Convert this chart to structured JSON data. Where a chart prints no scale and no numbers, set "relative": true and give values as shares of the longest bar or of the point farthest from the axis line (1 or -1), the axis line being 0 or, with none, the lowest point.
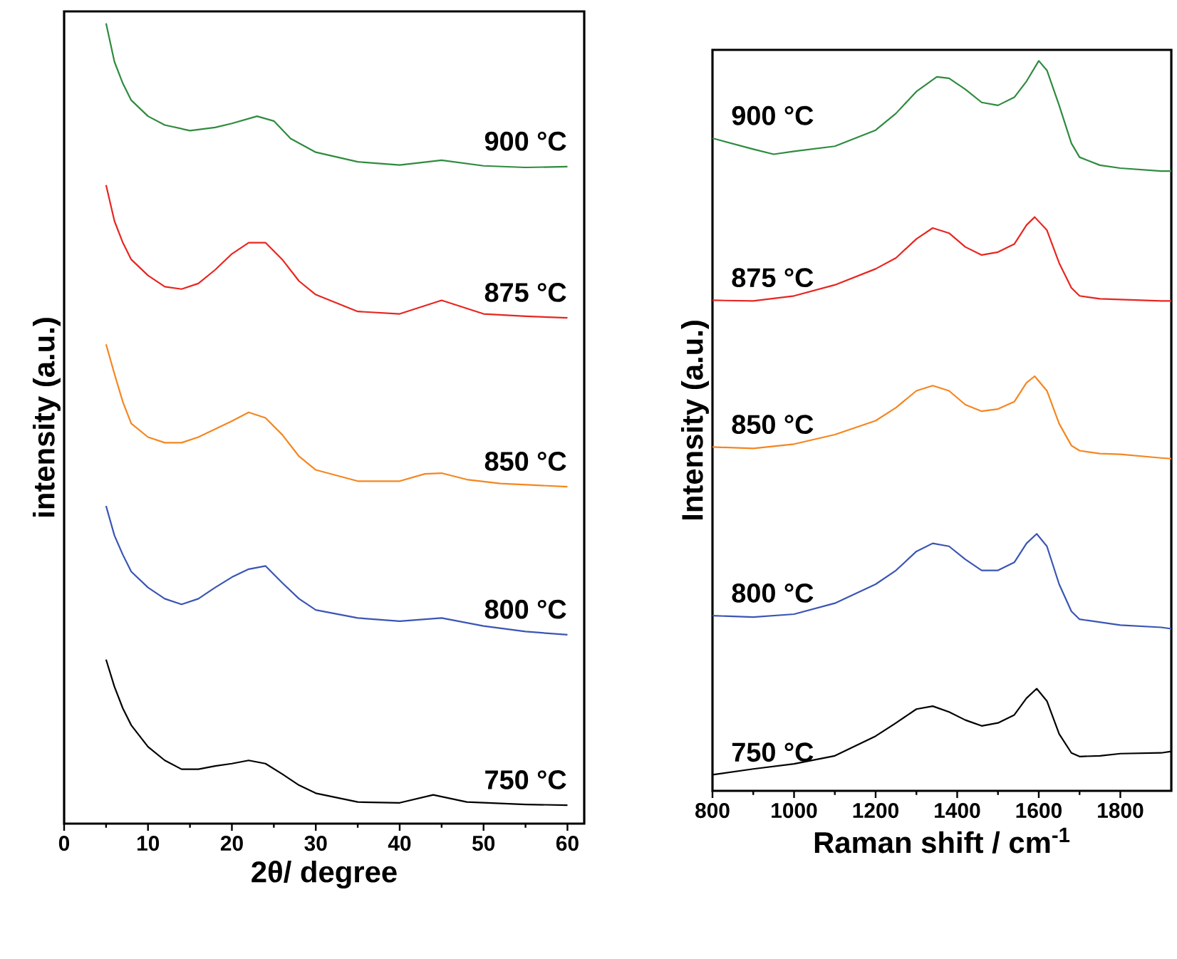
{
  "chart_data": [
    {
      "type": "line",
      "relative": true,
      "xlabel": "2θ/ degree",
      "ylabel": "intensity (a.u.)",
      "xlim": [
        0,
        62
      ],
      "xticks": [
        0,
        10,
        20,
        30,
        40,
        50,
        60
      ],
      "marker": "none",
      "line_style": "solid",
      "legend": false,
      "series": [
        {
          "name": "900 °C",
          "color": "#2e8b3e",
          "x": [
            5,
            6,
            7,
            8,
            10,
            12,
            15,
            18,
            20,
            23,
            25,
            27,
            30,
            35,
            40,
            45,
            50,
            55,
            60
          ],
          "values": [
            1.0,
            0.952,
            0.925,
            0.904,
            0.884,
            0.873,
            0.866,
            0.87,
            0.875,
            0.884,
            0.878,
            0.856,
            0.839,
            0.827,
            0.823,
            0.829,
            0.822,
            0.82,
            0.821
          ]
        },
        {
          "name": "875 °C",
          "color": "#e8251f",
          "x": [
            5,
            6,
            7,
            8,
            10,
            12,
            14,
            16,
            18,
            20,
            22,
            24,
            26,
            28,
            30,
            35,
            40,
            45,
            50,
            55,
            60
          ],
          "values": [
            0.798,
            0.753,
            0.726,
            0.705,
            0.685,
            0.671,
            0.668,
            0.675,
            0.692,
            0.712,
            0.726,
            0.726,
            0.705,
            0.678,
            0.661,
            0.64,
            0.637,
            0.654,
            0.637,
            0.634,
            0.632
          ]
        },
        {
          "name": "850 °C",
          "color": "#f5861f",
          "x": [
            5,
            6,
            7,
            8,
            10,
            12,
            14,
            16,
            18,
            20,
            22,
            24,
            26,
            28,
            30,
            35,
            40,
            43,
            45,
            48,
            52,
            56,
            60
          ],
          "values": [
            0.599,
            0.562,
            0.527,
            0.5,
            0.483,
            0.476,
            0.476,
            0.483,
            0.493,
            0.503,
            0.514,
            0.507,
            0.486,
            0.459,
            0.442,
            0.428,
            0.428,
            0.437,
            0.438,
            0.43,
            0.425,
            0.423,
            0.421
          ]
        },
        {
          "name": "800 °C",
          "color": "#3a55b4",
          "x": [
            5,
            6,
            7,
            8,
            10,
            12,
            14,
            16,
            18,
            20,
            22,
            24,
            26,
            28,
            30,
            35,
            40,
            45,
            50,
            55,
            60
          ],
          "values": [
            0.397,
            0.36,
            0.336,
            0.315,
            0.295,
            0.281,
            0.274,
            0.281,
            0.295,
            0.308,
            0.318,
            0.322,
            0.301,
            0.281,
            0.267,
            0.257,
            0.253,
            0.257,
            0.247,
            0.24,
            0.236
          ]
        },
        {
          "name": "750 °C",
          "color": "#000000",
          "x": [
            5,
            6,
            7,
            8,
            10,
            12,
            14,
            16,
            18,
            20,
            22,
            24,
            26,
            28,
            30,
            35,
            40,
            44,
            48,
            55,
            60
          ],
          "values": [
            0.205,
            0.171,
            0.144,
            0.123,
            0.096,
            0.079,
            0.068,
            0.068,
            0.072,
            0.075,
            0.079,
            0.075,
            0.062,
            0.048,
            0.038,
            0.027,
            0.026,
            0.036,
            0.027,
            0.024,
            0.023
          ]
        }
      ]
    },
    {
      "type": "line",
      "relative": true,
      "xlabel": "Raman shift / cm$^{-1}$",
      "ylabel": "Intensity (a.u.)",
      "xlim": [
        800,
        1925
      ],
      "xticks": [
        800,
        1000,
        1200,
        1400,
        1600,
        1800
      ],
      "marker": "none",
      "line_style": "solid",
      "legend": false,
      "series": [
        {
          "name": "900 °C",
          "color": "#2e8b3e",
          "x": [
            800,
            900,
            950,
            1000,
            1100,
            1200,
            1250,
            1300,
            1350,
            1380,
            1420,
            1460,
            1500,
            1540,
            1570,
            1600,
            1620,
            1650,
            1680,
            1700,
            1750,
            1800,
            1900,
            1925
          ],
          "values": [
            0.894,
            0.879,
            0.872,
            0.876,
            0.883,
            0.905,
            0.928,
            0.958,
            0.978,
            0.976,
            0.961,
            0.943,
            0.939,
            0.95,
            0.972,
            1.0,
            0.987,
            0.939,
            0.887,
            0.868,
            0.857,
            0.853,
            0.849,
            0.849
          ]
        },
        {
          "name": "875 °C",
          "color": "#e8251f",
          "x": [
            800,
            900,
            1000,
            1100,
            1200,
            1250,
            1300,
            1340,
            1380,
            1420,
            1460,
            1500,
            1540,
            1570,
            1590,
            1620,
            1650,
            1680,
            1700,
            1750,
            1800,
            1900,
            1925
          ],
          "values": [
            0.672,
            0.671,
            0.678,
            0.693,
            0.715,
            0.73,
            0.756,
            0.771,
            0.764,
            0.745,
            0.734,
            0.738,
            0.749,
            0.775,
            0.786,
            0.768,
            0.723,
            0.689,
            0.678,
            0.674,
            0.673,
            0.671,
            0.671
          ]
        },
        {
          "name": "850 °C",
          "color": "#f5861f",
          "x": [
            800,
            900,
            1000,
            1100,
            1200,
            1250,
            1300,
            1340,
            1380,
            1420,
            1460,
            1500,
            1540,
            1570,
            1590,
            1620,
            1650,
            1680,
            1700,
            1750,
            1800,
            1900,
            1925
          ],
          "values": [
            0.471,
            0.469,
            0.475,
            0.488,
            0.507,
            0.525,
            0.548,
            0.555,
            0.548,
            0.529,
            0.52,
            0.523,
            0.533,
            0.559,
            0.568,
            0.548,
            0.503,
            0.473,
            0.466,
            0.462,
            0.461,
            0.456,
            0.455
          ]
        },
        {
          "name": "800 °C",
          "color": "#3a55b4",
          "x": [
            800,
            900,
            1000,
            1100,
            1200,
            1250,
            1300,
            1340,
            1380,
            1420,
            1460,
            1500,
            1540,
            1570,
            1595,
            1620,
            1650,
            1680,
            1700,
            1750,
            1800,
            1900,
            1925
          ],
          "values": [
            0.24,
            0.238,
            0.242,
            0.257,
            0.283,
            0.302,
            0.328,
            0.339,
            0.335,
            0.317,
            0.302,
            0.302,
            0.313,
            0.339,
            0.352,
            0.335,
            0.283,
            0.246,
            0.235,
            0.231,
            0.227,
            0.224,
            0.222
          ]
        },
        {
          "name": "750 °C",
          "color": "#000000",
          "x": [
            800,
            900,
            1000,
            1100,
            1200,
            1250,
            1300,
            1340,
            1380,
            1420,
            1460,
            1500,
            1540,
            1570,
            1595,
            1620,
            1650,
            1680,
            1700,
            1750,
            1800,
            1900,
            1925
          ],
          "values": [
            0.022,
            0.03,
            0.037,
            0.048,
            0.075,
            0.093,
            0.112,
            0.116,
            0.108,
            0.097,
            0.089,
            0.093,
            0.104,
            0.127,
            0.14,
            0.123,
            0.078,
            0.052,
            0.047,
            0.048,
            0.051,
            0.052,
            0.054
          ]
        }
      ]
    }
  ]
}
